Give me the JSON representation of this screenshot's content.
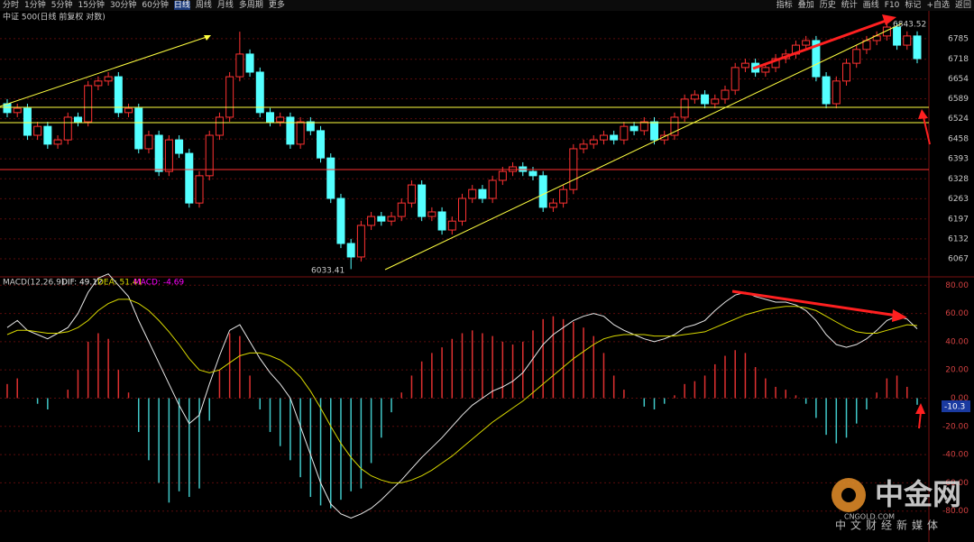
{
  "toolbar": {
    "periods": [
      "分时",
      "1分钟",
      "5分钟",
      "15分钟",
      "30分钟",
      "60分钟",
      "日线",
      "周线",
      "月线",
      "多周期",
      "更多"
    ],
    "tools": [
      "指标",
      "叠加",
      "历史",
      "统计",
      "画线",
      "F10",
      "标记",
      "+自选",
      "返回"
    ]
  },
  "chart_data": [
    {
      "type": "candlestick",
      "title": "中证 500(日线 前复权 对数)",
      "up_color": "#ff3232",
      "down_color": "#54ffff",
      "grid": true,
      "ylim": [
        6014,
        6876
      ],
      "yticks": [
        6785,
        6718,
        6654,
        6589,
        6524,
        6458,
        6393,
        6328,
        6263,
        6197,
        6132,
        6067
      ],
      "open": [
        6573,
        6544,
        6558,
        6470,
        6499,
        6441,
        6455,
        6529,
        6514,
        6632,
        6647,
        6661,
        6544,
        6558,
        6426,
        6470,
        6352,
        6455,
        6411,
        6249,
        6338,
        6470,
        6529,
        6661,
        6735,
        6676,
        6544,
        6514,
        6529,
        6441,
        6514,
        6485,
        6396,
        6264,
        6117,
        6073,
        6176,
        6205,
        6190,
        6205,
        6249,
        6308,
        6205,
        6220,
        6161,
        6190,
        6264,
        6293,
        6264,
        6323,
        6352,
        6367,
        6352,
        6338,
        6235,
        6249,
        6293,
        6426,
        6441,
        6455,
        6470,
        6455,
        6499,
        6485,
        6514,
        6455,
        6470,
        6529,
        6588,
        6602,
        6573,
        6588,
        6617,
        6691,
        6705,
        6676,
        6691,
        6720,
        6735,
        6764,
        6779,
        6661,
        6573,
        6647,
        6705,
        6750,
        6779,
        6794,
        6823,
        6764,
        6794
      ],
      "high": [
        6588,
        6573,
        6573,
        6514,
        6514,
        6470,
        6544,
        6544,
        6647,
        6662,
        6676,
        6676,
        6573,
        6573,
        6485,
        6485,
        6470,
        6470,
        6426,
        6353,
        6485,
        6544,
        6676,
        6808,
        6750,
        6691,
        6559,
        6544,
        6544,
        6529,
        6529,
        6500,
        6411,
        6279,
        6132,
        6191,
        6220,
        6220,
        6220,
        6264,
        6323,
        6323,
        6235,
        6235,
        6205,
        6279,
        6308,
        6308,
        6338,
        6367,
        6382,
        6382,
        6367,
        6353,
        6264,
        6308,
        6441,
        6456,
        6470,
        6485,
        6485,
        6514,
        6514,
        6529,
        6529,
        6485,
        6544,
        6603,
        6617,
        6617,
        6603,
        6632,
        6706,
        6720,
        6720,
        6706,
        6735,
        6750,
        6779,
        6794,
        6794,
        6676,
        6662,
        6720,
        6765,
        6794,
        6809,
        6843.52,
        6838,
        6809,
        6809
      ],
      "low": [
        6529,
        6529,
        6455,
        6455,
        6426,
        6426,
        6440,
        6499,
        6499,
        6617,
        6632,
        6529,
        6529,
        6411,
        6411,
        6337,
        6337,
        6396,
        6234,
        6234,
        6323,
        6455,
        6514,
        6646,
        6661,
        6529,
        6499,
        6499,
        6426,
        6426,
        6470,
        6381,
        6249,
        6102,
        6033.41,
        6058,
        6161,
        6175,
        6175,
        6190,
        6234,
        6190,
        6190,
        6146,
        6146,
        6175,
        6249,
        6249,
        6249,
        6308,
        6337,
        6337,
        6323,
        6220,
        6220,
        6234,
        6278,
        6411,
        6426,
        6440,
        6440,
        6440,
        6470,
        6470,
        6440,
        6440,
        6455,
        6514,
        6573,
        6558,
        6558,
        6573,
        6602,
        6676,
        6661,
        6661,
        6676,
        6705,
        6720,
        6749,
        6646,
        6558,
        6558,
        6632,
        6690,
        6735,
        6764,
        6779,
        6749,
        6749,
        6705
      ],
      "close": [
        6544,
        6558,
        6470,
        6499,
        6441,
        6455,
        6529,
        6514,
        6632,
        6647,
        6661,
        6544,
        6558,
        6426,
        6470,
        6352,
        6455,
        6411,
        6249,
        6338,
        6470,
        6529,
        6661,
        6735,
        6676,
        6544,
        6514,
        6529,
        6441,
        6514,
        6485,
        6396,
        6264,
        6117,
        6073,
        6176,
        6205,
        6190,
        6205,
        6249,
        6308,
        6205,
        6220,
        6161,
        6190,
        6264,
        6293,
        6264,
        6323,
        6352,
        6367,
        6352,
        6338,
        6235,
        6249,
        6293,
        6426,
        6441,
        6455,
        6470,
        6455,
        6499,
        6485,
        6514,
        6455,
        6470,
        6529,
        6588,
        6602,
        6573,
        6588,
        6617,
        6691,
        6705,
        6676,
        6691,
        6720,
        6735,
        6764,
        6779,
        6661,
        6573,
        6647,
        6705,
        6750,
        6779,
        6794,
        6823,
        6764,
        6794,
        6720
      ]
    },
    {
      "type": "macd",
      "title": "MACD(12,26,9)",
      "current_label": "-10.3",
      "grid": true,
      "ylim": [
        -100,
        84
      ],
      "yticks": [
        {
          "value": 80,
          "label": "80.00"
        },
        {
          "value": 60,
          "label": "60.00"
        },
        {
          "value": 40,
          "label": "40.00"
        },
        {
          "value": 20,
          "label": "20.00"
        },
        {
          "value": 0,
          "label": "0.00"
        },
        {
          "value": -20,
          "label": "-20.00"
        },
        {
          "value": -40,
          "label": "-40.00"
        },
        {
          "value": -60,
          "label": "-60.00"
        },
        {
          "value": -80,
          "label": "-80.00"
        }
      ],
      "series": [
        {
          "label": "DIF: 49.12",
          "color": "#e8e8e8",
          "values": [
            50,
            55,
            48,
            45,
            42,
            46,
            50,
            60,
            75,
            85,
            88,
            80,
            72,
            55,
            40,
            25,
            10,
            -5,
            -18,
            -12,
            10,
            30,
            48,
            52,
            40,
            28,
            18,
            10,
            0,
            -20,
            -40,
            -60,
            -75,
            -82,
            -85,
            -82,
            -78,
            -72,
            -65,
            -58,
            -50,
            -42,
            -35,
            -28,
            -20,
            -12,
            -5,
            0,
            5,
            8,
            12,
            18,
            28,
            38,
            45,
            50,
            55,
            58,
            60,
            58,
            52,
            48,
            45,
            42,
            40,
            42,
            45,
            50,
            52,
            55,
            62,
            68,
            73,
            75,
            72,
            70,
            68,
            68,
            66,
            62,
            55,
            45,
            38,
            36,
            38,
            42,
            48,
            55,
            58,
            56,
            49.12
          ]
        },
        {
          "label": "DEA: 51.41",
          "color": "#d8d800",
          "values": [
            45,
            48,
            48,
            47,
            46,
            46,
            47,
            50,
            55,
            62,
            67,
            70,
            70,
            67,
            62,
            55,
            47,
            38,
            28,
            20,
            18,
            20,
            25,
            30,
            32,
            32,
            30,
            27,
            22,
            15,
            5,
            -7,
            -20,
            -32,
            -42,
            -50,
            -55,
            -58,
            -60,
            -60,
            -58,
            -55,
            -51,
            -46,
            -41,
            -35,
            -29,
            -23,
            -17,
            -12,
            -7,
            -2,
            4,
            10,
            16,
            22,
            28,
            33,
            38,
            42,
            44,
            45,
            45,
            45,
            44,
            44,
            44,
            45,
            46,
            47,
            50,
            53,
            56,
            59,
            61,
            63,
            64,
            65,
            65,
            64,
            62,
            58,
            54,
            50,
            47,
            46,
            46,
            48,
            50,
            52,
            51.41
          ]
        },
        {
          "label": "MACD: -4.69",
          "color": "#ff00ff",
          "up_color": "#e03030",
          "down_color": "#40c8c8",
          "values": [
            10,
            14,
            0,
            -4,
            -8,
            0,
            6,
            20,
            40,
            46,
            42,
            20,
            4,
            -24,
            -44,
            -60,
            -74,
            -66,
            -70,
            -64,
            -16,
            20,
            46,
            44,
            16,
            -8,
            -24,
            -34,
            -44,
            -56,
            -70,
            -76,
            -78,
            -72,
            -66,
            -64,
            -46,
            -28,
            -10,
            4,
            16,
            26,
            32,
            36,
            42,
            46,
            48,
            46,
            44,
            40,
            38,
            40,
            48,
            56,
            58,
            56,
            54,
            50,
            44,
            32,
            16,
            6,
            0,
            -6,
            -8,
            -4,
            2,
            10,
            12,
            16,
            24,
            30,
            34,
            32,
            22,
            14,
            8,
            6,
            2,
            -4,
            -14,
            -26,
            -32,
            -28,
            -18,
            -8,
            4,
            14,
            16,
            8,
            -4.69
          ]
        }
      ]
    }
  ],
  "watermark": {
    "name": "中金网",
    "url": "CNGOLD.COM",
    "slogan": "中文财经新媒体"
  }
}
